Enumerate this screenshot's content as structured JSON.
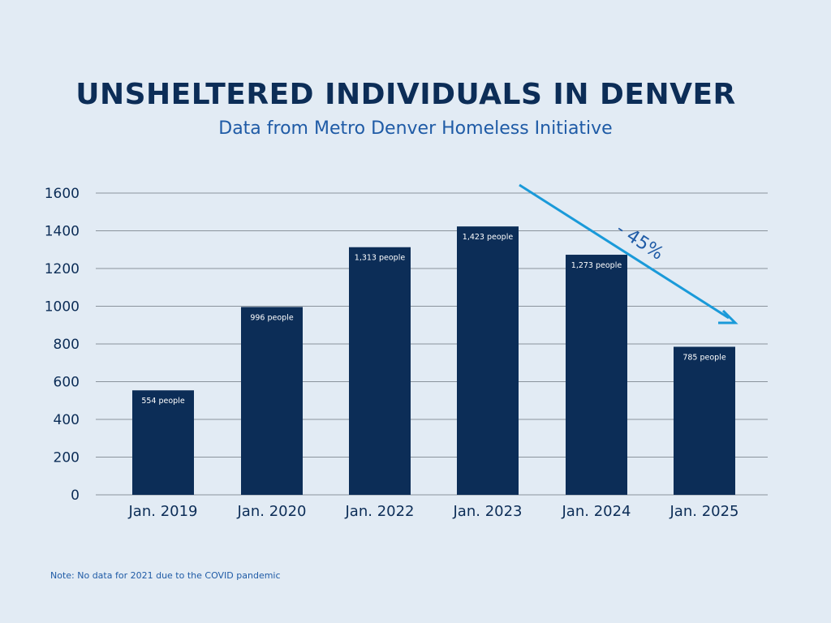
{
  "chart_data": {
    "type": "bar",
    "title": "UNSHELTERED INDIVIDUALS IN DENVER",
    "subtitle": "Data from Metro Denver Homeless Initiative",
    "categories": [
      "Jan. 2019",
      "Jan. 2020",
      "Jan. 2022",
      "Jan. 2023",
      "Jan. 2024",
      "Jan. 2025"
    ],
    "values": [
      554,
      996,
      1313,
      1423,
      1273,
      785
    ],
    "data_labels": [
      "554 people",
      "996 people",
      "1,313 people",
      "1,423 people",
      "1,273 people",
      "785 people"
    ],
    "yticks": [
      "0",
      "200",
      "400",
      "600",
      "800",
      "1000",
      "1200",
      "1400",
      "1600"
    ],
    "ylim": [
      0,
      1600
    ],
    "grid": true,
    "xlabel": "",
    "ylabel": "",
    "annotation": "- 45%",
    "note": "Note: No data for 2021 due to the COVID pandemic",
    "colors": {
      "bar": "#0c2d57",
      "arrow": "#1a9ad9",
      "grid": "#8a939c",
      "background": "#e2ebf4"
    }
  }
}
